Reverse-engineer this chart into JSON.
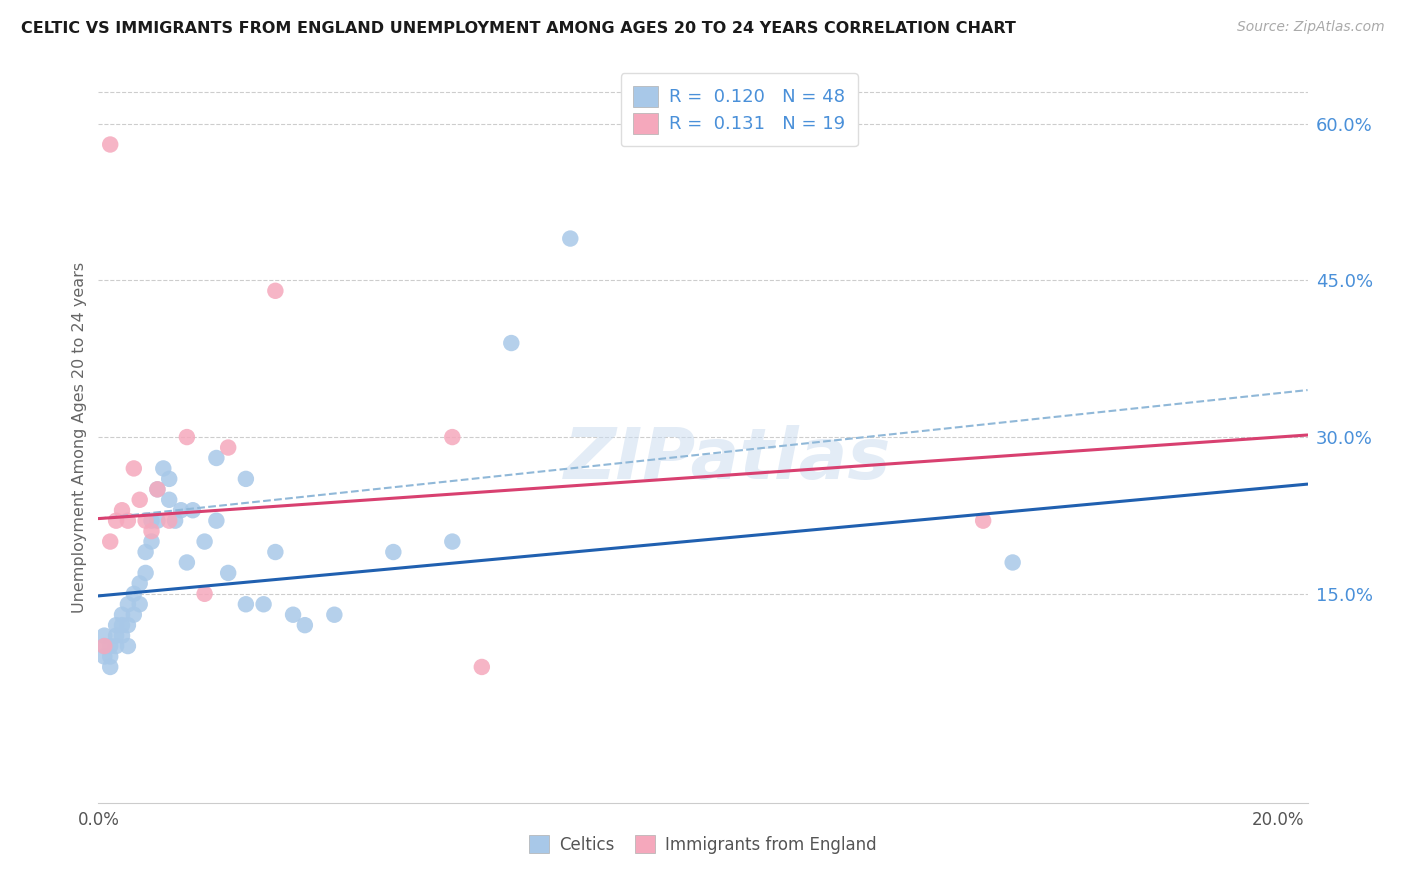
{
  "title": "CELTIC VS IMMIGRANTS FROM ENGLAND UNEMPLOYMENT AMONG AGES 20 TO 24 YEARS CORRELATION CHART",
  "source": "Source: ZipAtlas.com",
  "ylabel": "Unemployment Among Ages 20 to 24 years",
  "xlim": [
    0.0,
    0.205
  ],
  "ylim": [
    -0.05,
    0.65
  ],
  "xticks": [
    0.0,
    0.04,
    0.08,
    0.12,
    0.16,
    0.2
  ],
  "xticklabels": [
    "0.0%",
    "",
    "",
    "",
    "",
    "20.0%"
  ],
  "yticks_right": [
    0.15,
    0.3,
    0.45,
    0.6
  ],
  "ytick_labels_right": [
    "15.0%",
    "30.0%",
    "45.0%",
    "60.0%"
  ],
  "celtics_color": "#a8c8e8",
  "immigrants_color": "#f5a8bc",
  "celtics_line_color": "#2060b0",
  "immigrants_line_color": "#d84070",
  "dashed_line_color": "#90b8d8",
  "grid_color": "#c8c8c8",
  "background_color": "#ffffff",
  "title_color": "#1a1a1a",
  "right_axis_label_color": "#4a90d9",
  "celtics_R": 0.12,
  "celtics_N": 48,
  "immigrants_R": 0.131,
  "immigrants_N": 19,
  "celtics_scatter_x": [
    0.001,
    0.001,
    0.001,
    0.002,
    0.002,
    0.002,
    0.003,
    0.003,
    0.003,
    0.004,
    0.004,
    0.004,
    0.005,
    0.005,
    0.005,
    0.006,
    0.006,
    0.007,
    0.007,
    0.008,
    0.008,
    0.009,
    0.009,
    0.01,
    0.01,
    0.011,
    0.012,
    0.012,
    0.013,
    0.014,
    0.015,
    0.016,
    0.018,
    0.02,
    0.022,
    0.025,
    0.028,
    0.03,
    0.033,
    0.035,
    0.04,
    0.05,
    0.06,
    0.07,
    0.08,
    0.02,
    0.025,
    0.155
  ],
  "celtics_scatter_y": [
    0.1,
    0.11,
    0.09,
    0.1,
    0.09,
    0.08,
    0.12,
    0.11,
    0.1,
    0.13,
    0.12,
    0.11,
    0.14,
    0.12,
    0.1,
    0.15,
    0.13,
    0.16,
    0.14,
    0.19,
    0.17,
    0.2,
    0.22,
    0.22,
    0.25,
    0.27,
    0.26,
    0.24,
    0.22,
    0.23,
    0.18,
    0.23,
    0.2,
    0.22,
    0.17,
    0.14,
    0.14,
    0.19,
    0.13,
    0.12,
    0.13,
    0.19,
    0.2,
    0.39,
    0.49,
    0.28,
    0.26,
    0.18
  ],
  "immigrants_scatter_x": [
    0.001,
    0.002,
    0.002,
    0.003,
    0.004,
    0.005,
    0.006,
    0.007,
    0.008,
    0.009,
    0.01,
    0.012,
    0.015,
    0.018,
    0.022,
    0.03,
    0.06,
    0.065,
    0.15
  ],
  "immigrants_scatter_y": [
    0.1,
    0.2,
    0.58,
    0.22,
    0.23,
    0.22,
    0.27,
    0.24,
    0.22,
    0.21,
    0.25,
    0.22,
    0.3,
    0.15,
    0.29,
    0.44,
    0.3,
    0.08,
    0.22
  ],
  "celtics_line_x0": 0.0,
  "celtics_line_y0": 0.148,
  "celtics_line_x1": 0.205,
  "celtics_line_y1": 0.255,
  "immigrants_line_x0": 0.0,
  "immigrants_line_y0": 0.222,
  "immigrants_line_x1": 0.205,
  "immigrants_line_y1": 0.302,
  "dashed_line_x0": 0.0,
  "dashed_line_y0": 0.222,
  "dashed_line_x1": 0.205,
  "dashed_line_y1": 0.345
}
